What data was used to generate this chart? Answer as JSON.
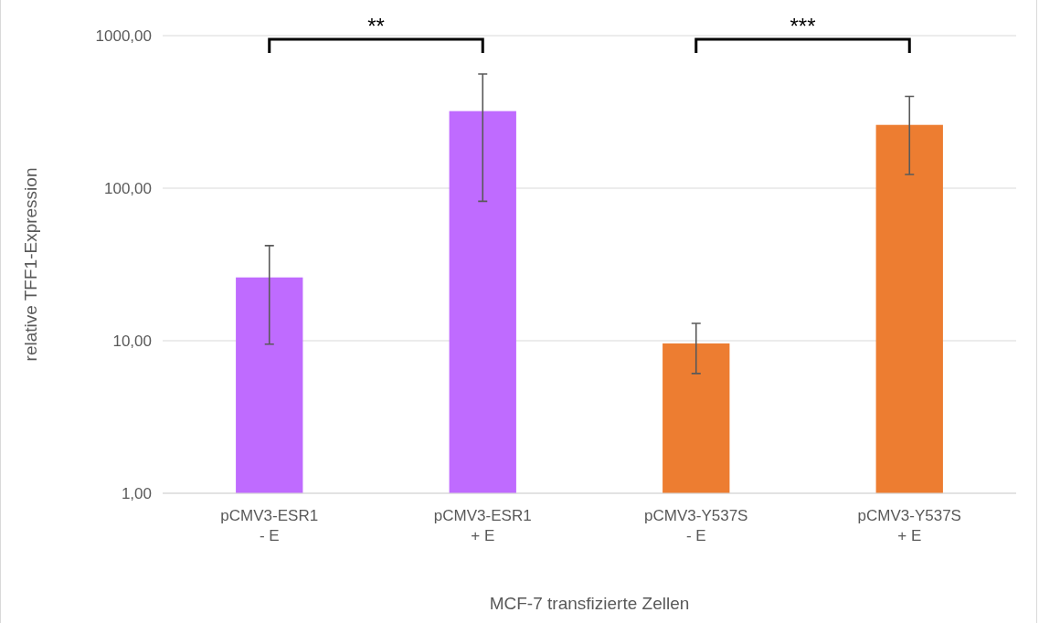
{
  "chart_data": {
    "type": "bar",
    "xlabel": "MCF-7 transfizierte Zellen",
    "ylabel": "relative TFF1-Expression",
    "categories": [
      "pCMV3-ESR1\n- E",
      "pCMV3-ESR1\n+ E",
      "pCMV3-Y537S\n- E",
      "pCMV3-Y537S\n+ E"
    ],
    "values": [
      26,
      320,
      9.6,
      260
    ],
    "colors": [
      "#bf6bff",
      "#bf6bff",
      "#ed7d31",
      "#ed7d31"
    ],
    "errors": [
      [
        9.5,
        42
      ],
      [
        82,
        560
      ],
      [
        6.1,
        13
      ],
      [
        123,
        400
      ]
    ],
    "log": "y",
    "ylim": [
      1,
      1000
    ],
    "yticks": [
      {
        "value": 1,
        "label": "1,00"
      },
      {
        "value": 10,
        "label": "10,00"
      },
      {
        "value": 100,
        "label": "100,00"
      },
      {
        "value": 1000,
        "label": "1000,00"
      }
    ],
    "grid": "y",
    "annotations": [
      "**",
      "***"
    ]
  }
}
